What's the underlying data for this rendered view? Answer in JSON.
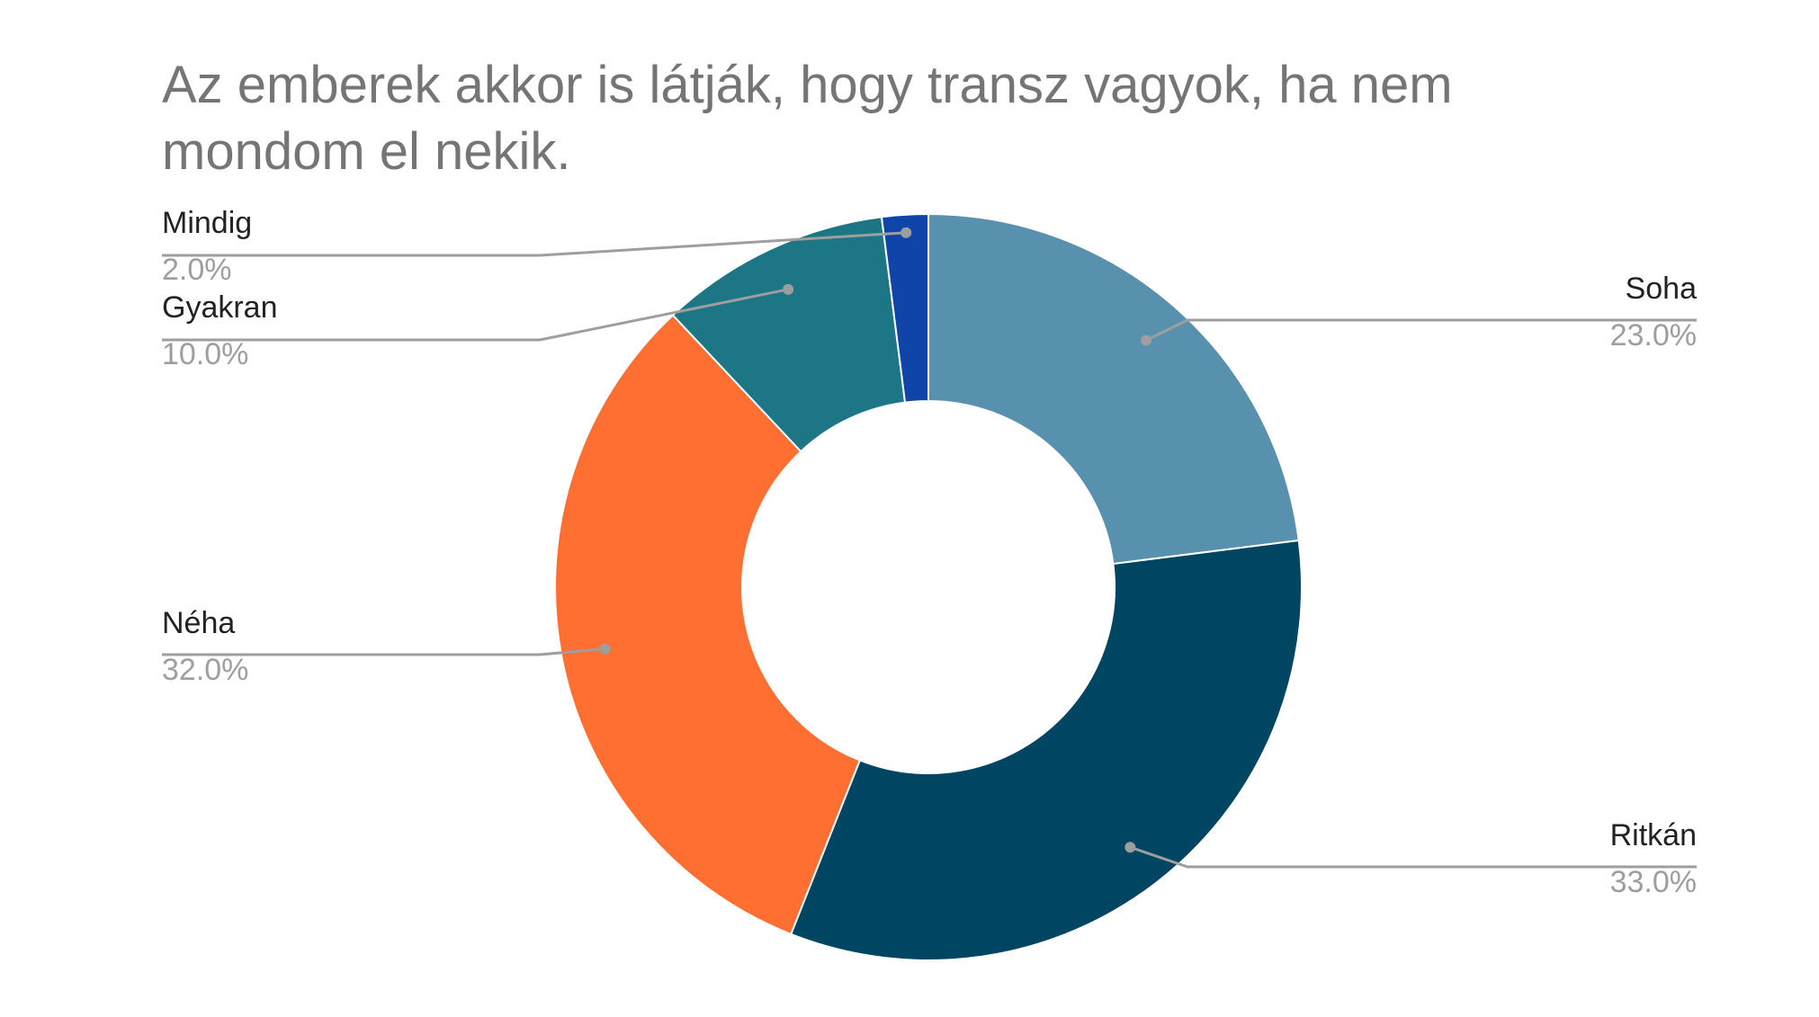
{
  "chart_data": {
    "type": "pie",
    "style": "donut",
    "title": "Az emberek akkor is látják, hogy transz vagyok, ha nem mondom el nekik.",
    "legend": "callout-labels",
    "slices": [
      {
        "label": "Soha",
        "value": 23.0,
        "display": "23.0%",
        "color": "#5891AD"
      },
      {
        "label": "Ritkán",
        "value": 33.0,
        "display": "33.0%",
        "color": "#004561"
      },
      {
        "label": "Néha",
        "value": 32.0,
        "display": "32.0%",
        "color": "#FF6F31"
      },
      {
        "label": "Gyakran",
        "value": 10.0,
        "display": "10.0%",
        "color": "#1C7685"
      },
      {
        "label": "Mindig",
        "value": 2.0,
        "display": "2.0%",
        "color": "#0F45A8"
      }
    ]
  }
}
